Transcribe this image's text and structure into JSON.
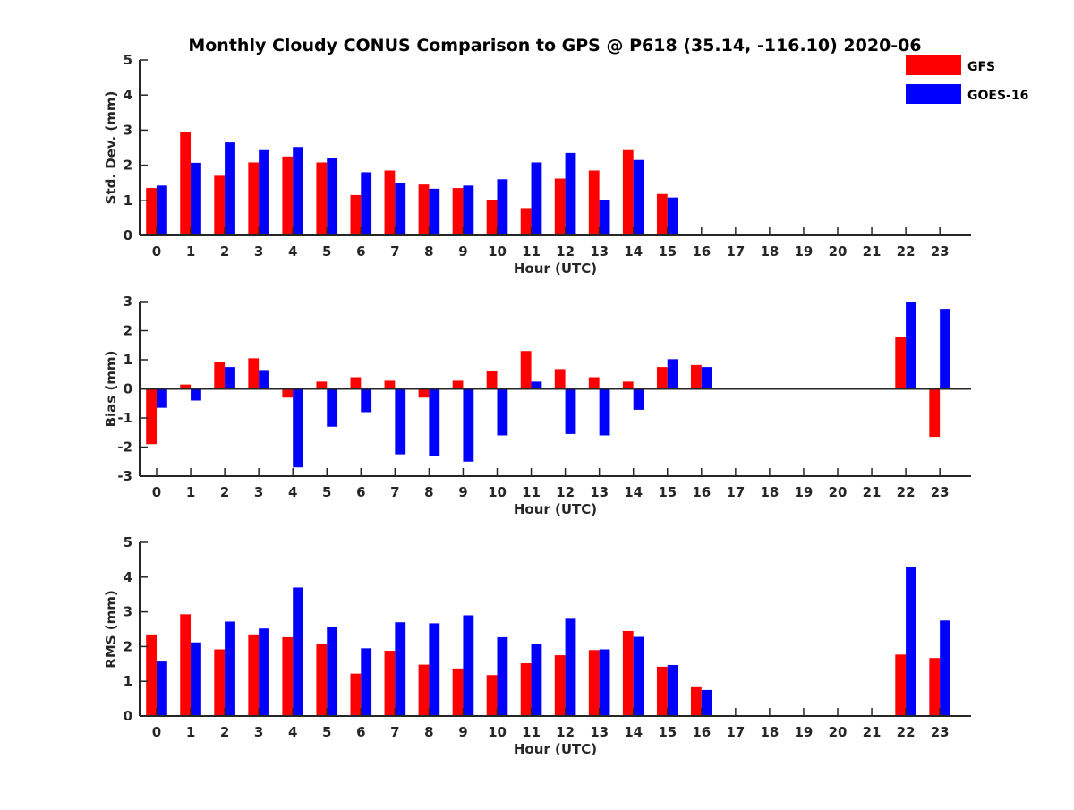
{
  "title": "Monthly Cloudy CONUS Comparison to GPS @ P618 (35.14, -116.10) 2020-06",
  "legend": [
    {
      "label": "GFS",
      "color": "#ff0000"
    },
    {
      "label": "GOES-16",
      "color": "#0000ff"
    }
  ],
  "chart_data": [
    {
      "type": "bar",
      "ylabel": "Std. Dev. (mm)",
      "xlabel": "Hour (UTC)",
      "ylim": [
        0,
        5
      ],
      "yticks": [
        0,
        1,
        2,
        3,
        4,
        5
      ],
      "categories": [
        "0",
        "1",
        "2",
        "3",
        "4",
        "5",
        "6",
        "7",
        "8",
        "9",
        "10",
        "11",
        "12",
        "13",
        "14",
        "15",
        "16",
        "17",
        "18",
        "19",
        "20",
        "21",
        "22",
        "23"
      ],
      "series": [
        {
          "name": "GFS",
          "values": [
            1.35,
            2.95,
            1.7,
            2.08,
            2.25,
            2.08,
            1.15,
            1.85,
            1.45,
            1.35,
            1.0,
            0.78,
            1.62,
            1.85,
            2.43,
            1.18,
            null,
            null,
            null,
            null,
            null,
            null,
            null,
            null
          ]
        },
        {
          "name": "GOES-16",
          "values": [
            1.42,
            2.07,
            2.65,
            2.43,
            2.52,
            2.2,
            1.8,
            1.5,
            1.33,
            1.42,
            1.6,
            2.08,
            2.35,
            1.0,
            2.15,
            1.08,
            null,
            null,
            null,
            null,
            null,
            null,
            null,
            null
          ]
        }
      ]
    },
    {
      "type": "bar",
      "ylabel": "Bias (mm)",
      "xlabel": "Hour (UTC)",
      "ylim": [
        -3,
        3
      ],
      "yticks": [
        -3,
        -2,
        -1,
        0,
        1,
        2,
        3
      ],
      "categories": [
        "0",
        "1",
        "2",
        "3",
        "4",
        "5",
        "6",
        "7",
        "8",
        "9",
        "10",
        "11",
        "12",
        "13",
        "14",
        "15",
        "16",
        "17",
        "18",
        "19",
        "20",
        "21",
        "22",
        "23"
      ],
      "series": [
        {
          "name": "GFS",
          "values": [
            -1.9,
            0.15,
            0.93,
            1.05,
            -0.3,
            0.25,
            0.4,
            0.28,
            -0.3,
            0.28,
            0.62,
            1.3,
            0.68,
            0.4,
            0.25,
            0.75,
            0.82,
            null,
            null,
            null,
            null,
            null,
            1.78,
            -1.65
          ]
        },
        {
          "name": "GOES-16",
          "values": [
            -0.65,
            -0.4,
            0.75,
            0.65,
            -2.7,
            -1.3,
            -0.8,
            -2.25,
            -2.3,
            -2.5,
            -1.6,
            0.25,
            -1.55,
            -1.6,
            -0.72,
            1.02,
            0.75,
            null,
            null,
            null,
            null,
            null,
            3.0,
            2.75
          ]
        }
      ]
    },
    {
      "type": "bar",
      "ylabel": "RMS (mm)",
      "xlabel": "Hour (UTC)",
      "ylim": [
        0,
        5
      ],
      "yticks": [
        0,
        1,
        2,
        3,
        4,
        5
      ],
      "categories": [
        "0",
        "1",
        "2",
        "3",
        "4",
        "5",
        "6",
        "7",
        "8",
        "9",
        "10",
        "11",
        "12",
        "13",
        "14",
        "15",
        "16",
        "17",
        "18",
        "19",
        "20",
        "21",
        "22",
        "23"
      ],
      "series": [
        {
          "name": "GFS",
          "values": [
            2.35,
            2.93,
            1.92,
            2.35,
            2.27,
            2.08,
            1.22,
            1.88,
            1.48,
            1.37,
            1.18,
            1.52,
            1.75,
            1.9,
            2.45,
            1.42,
            0.83,
            null,
            null,
            null,
            null,
            null,
            1.77,
            1.67
          ]
        },
        {
          "name": "GOES-16",
          "values": [
            1.57,
            2.12,
            2.72,
            2.52,
            3.7,
            2.57,
            1.95,
            2.7,
            2.67,
            2.9,
            2.27,
            2.08,
            2.8,
            1.92,
            2.28,
            1.47,
            0.75,
            null,
            null,
            null,
            null,
            null,
            4.3,
            2.75
          ]
        }
      ]
    }
  ]
}
